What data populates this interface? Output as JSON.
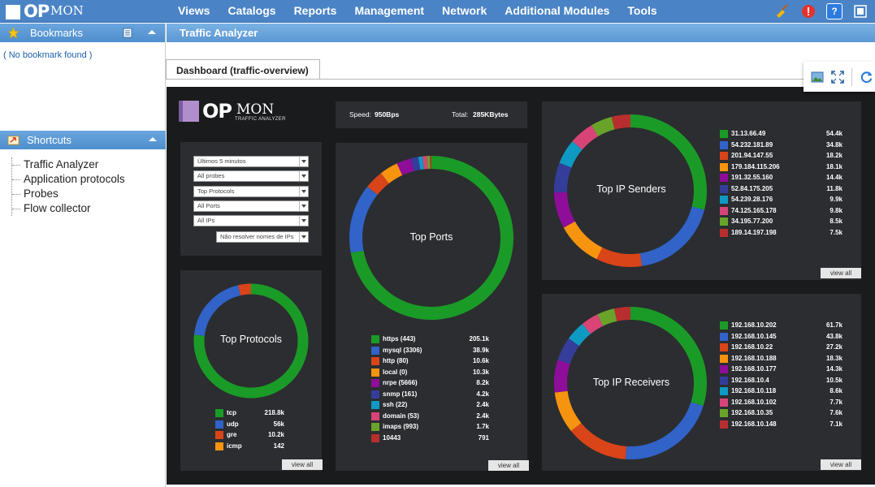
{
  "app": {
    "logo_op": "OP",
    "logo_mon": "MON"
  },
  "menu": [
    "Views",
    "Catalogs",
    "Reports",
    "Management",
    "Network",
    "Additional Modules",
    "Tools"
  ],
  "sidebar": {
    "bookmarks_title": "Bookmarks",
    "no_bookmark": "( No bookmark found )",
    "shortcuts_title": "Shortcuts",
    "shortcuts": [
      "Traffic Analyzer",
      "Application protocols",
      "Probes",
      "Flow collector"
    ]
  },
  "page": {
    "title": "Traffic Analyzer",
    "tab": "Dashboard (traffic-overview)"
  },
  "dashboard": {
    "logo_op": "OP",
    "logo_mon": "MON",
    "logo_sub": "TRAFFIC ANALYZER",
    "speed_label": "Speed:",
    "speed_value": "950Bps",
    "total_label": "Total:",
    "total_value": "285KBytes",
    "filters": [
      "Últimos 5 minutos",
      "All probes",
      "Top Protocols",
      "All Ports",
      "All IPs",
      "Não resolver nomes de IPs"
    ],
    "view_all": "view all"
  },
  "colors": {
    "palette": [
      "#1a9b27",
      "#3163c8",
      "#d94419",
      "#f6930f",
      "#8e0d99",
      "#353d9a",
      "#0e9ac2",
      "#d94477",
      "#6aa32a",
      "#b82e2e"
    ]
  },
  "chart_data": [
    {
      "type": "pie",
      "title": "Top Protocols",
      "labels": [
        "tcp",
        "udp",
        "gre",
        "icmp"
      ],
      "values": [
        218.8,
        56,
        10.2,
        0.142
      ],
      "display": [
        "218.8k",
        "56k",
        "10.2k",
        "142"
      ]
    },
    {
      "type": "pie",
      "title": "Top Ports",
      "labels": [
        "https (443)",
        "mysql (3306)",
        "http (80)",
        "local (0)",
        "nrpe (5666)",
        "snmp (161)",
        "ssh (22)",
        "domain (53)",
        "imaps (993)",
        "10443"
      ],
      "values": [
        205.1,
        38.9,
        10.6,
        10.3,
        8.2,
        4.2,
        2.4,
        2.4,
        1.7,
        0.791
      ],
      "display": [
        "205.1k",
        "38.9k",
        "10.6k",
        "10.3k",
        "8.2k",
        "4.2k",
        "2.4k",
        "2.4k",
        "1.7k",
        "791"
      ]
    },
    {
      "type": "pie",
      "title": "Top IP Senders",
      "labels": [
        "31.13.66.49",
        "54.232.181.89",
        "201.94.147.55",
        "179.184.115.206",
        "191.32.55.160",
        "52.84.175.205",
        "54.239.28.176",
        "74.125.165.178",
        "34.195.77.200",
        "189.14.197.198"
      ],
      "values": [
        54.4,
        34.8,
        18.2,
        18.1,
        14.4,
        11.8,
        9.9,
        9.8,
        8.5,
        7.5
      ],
      "display": [
        "54.4k",
        "34.8k",
        "18.2k",
        "18.1k",
        "14.4k",
        "11.8k",
        "9.9k",
        "9.8k",
        "8.5k",
        "7.5k"
      ]
    },
    {
      "type": "pie",
      "title": "Top IP Receivers",
      "labels": [
        "192.168.10.202",
        "192.168.10.145",
        "192.168.10.22",
        "192.168.10.188",
        "192.168.10.177",
        "192.168.10.4",
        "192.168.10.118",
        "192.168.10.102",
        "192.168.10.35",
        "192.168.10.148"
      ],
      "values": [
        61.7,
        43.8,
        27.2,
        18.3,
        14.3,
        10.5,
        8.6,
        7.7,
        7.6,
        7.1
      ],
      "display": [
        "61.7k",
        "43.8k",
        "27.2k",
        "18.3k",
        "14.3k",
        "10.5k",
        "8.6k",
        "7.7k",
        "7.6k",
        "7.1k"
      ]
    }
  ]
}
